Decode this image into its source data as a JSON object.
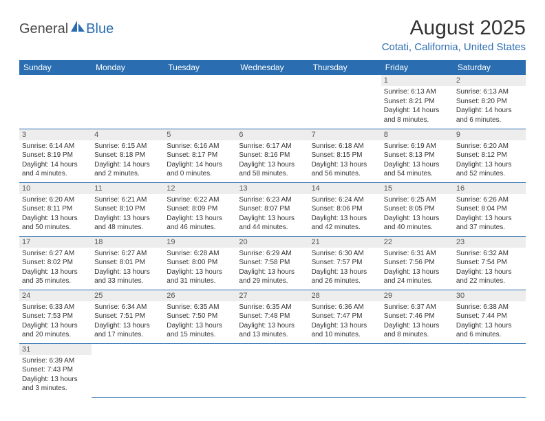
{
  "brand": {
    "part1": "General",
    "part2": "Blue",
    "logo_color": "#2a6db0"
  },
  "title": "August 2025",
  "location": "Cotati, California, United States",
  "colors": {
    "header_bg": "#2a6db0",
    "header_fg": "#ffffff",
    "daynum_bg": "#ededed",
    "text": "#333333",
    "rule": "#2a6db0"
  },
  "weekdays": [
    "Sunday",
    "Monday",
    "Tuesday",
    "Wednesday",
    "Thursday",
    "Friday",
    "Saturday"
  ],
  "weeks": [
    [
      null,
      null,
      null,
      null,
      null,
      {
        "n": "1",
        "sr": "6:13 AM",
        "ss": "8:21 PM",
        "dl": "14 hours and 8 minutes."
      },
      {
        "n": "2",
        "sr": "6:13 AM",
        "ss": "8:20 PM",
        "dl": "14 hours and 6 minutes."
      }
    ],
    [
      {
        "n": "3",
        "sr": "6:14 AM",
        "ss": "8:19 PM",
        "dl": "14 hours and 4 minutes."
      },
      {
        "n": "4",
        "sr": "6:15 AM",
        "ss": "8:18 PM",
        "dl": "14 hours and 2 minutes."
      },
      {
        "n": "5",
        "sr": "6:16 AM",
        "ss": "8:17 PM",
        "dl": "14 hours and 0 minutes."
      },
      {
        "n": "6",
        "sr": "6:17 AM",
        "ss": "8:16 PM",
        "dl": "13 hours and 58 minutes."
      },
      {
        "n": "7",
        "sr": "6:18 AM",
        "ss": "8:15 PM",
        "dl": "13 hours and 56 minutes."
      },
      {
        "n": "8",
        "sr": "6:19 AM",
        "ss": "8:13 PM",
        "dl": "13 hours and 54 minutes."
      },
      {
        "n": "9",
        "sr": "6:20 AM",
        "ss": "8:12 PM",
        "dl": "13 hours and 52 minutes."
      }
    ],
    [
      {
        "n": "10",
        "sr": "6:20 AM",
        "ss": "8:11 PM",
        "dl": "13 hours and 50 minutes."
      },
      {
        "n": "11",
        "sr": "6:21 AM",
        "ss": "8:10 PM",
        "dl": "13 hours and 48 minutes."
      },
      {
        "n": "12",
        "sr": "6:22 AM",
        "ss": "8:09 PM",
        "dl": "13 hours and 46 minutes."
      },
      {
        "n": "13",
        "sr": "6:23 AM",
        "ss": "8:07 PM",
        "dl": "13 hours and 44 minutes."
      },
      {
        "n": "14",
        "sr": "6:24 AM",
        "ss": "8:06 PM",
        "dl": "13 hours and 42 minutes."
      },
      {
        "n": "15",
        "sr": "6:25 AM",
        "ss": "8:05 PM",
        "dl": "13 hours and 40 minutes."
      },
      {
        "n": "16",
        "sr": "6:26 AM",
        "ss": "8:04 PM",
        "dl": "13 hours and 37 minutes."
      }
    ],
    [
      {
        "n": "17",
        "sr": "6:27 AM",
        "ss": "8:02 PM",
        "dl": "13 hours and 35 minutes."
      },
      {
        "n": "18",
        "sr": "6:27 AM",
        "ss": "8:01 PM",
        "dl": "13 hours and 33 minutes."
      },
      {
        "n": "19",
        "sr": "6:28 AM",
        "ss": "8:00 PM",
        "dl": "13 hours and 31 minutes."
      },
      {
        "n": "20",
        "sr": "6:29 AM",
        "ss": "7:58 PM",
        "dl": "13 hours and 29 minutes."
      },
      {
        "n": "21",
        "sr": "6:30 AM",
        "ss": "7:57 PM",
        "dl": "13 hours and 26 minutes."
      },
      {
        "n": "22",
        "sr": "6:31 AM",
        "ss": "7:56 PM",
        "dl": "13 hours and 24 minutes."
      },
      {
        "n": "23",
        "sr": "6:32 AM",
        "ss": "7:54 PM",
        "dl": "13 hours and 22 minutes."
      }
    ],
    [
      {
        "n": "24",
        "sr": "6:33 AM",
        "ss": "7:53 PM",
        "dl": "13 hours and 20 minutes."
      },
      {
        "n": "25",
        "sr": "6:34 AM",
        "ss": "7:51 PM",
        "dl": "13 hours and 17 minutes."
      },
      {
        "n": "26",
        "sr": "6:35 AM",
        "ss": "7:50 PM",
        "dl": "13 hours and 15 minutes."
      },
      {
        "n": "27",
        "sr": "6:35 AM",
        "ss": "7:48 PM",
        "dl": "13 hours and 13 minutes."
      },
      {
        "n": "28",
        "sr": "6:36 AM",
        "ss": "7:47 PM",
        "dl": "13 hours and 10 minutes."
      },
      {
        "n": "29",
        "sr": "6:37 AM",
        "ss": "7:46 PM",
        "dl": "13 hours and 8 minutes."
      },
      {
        "n": "30",
        "sr": "6:38 AM",
        "ss": "7:44 PM",
        "dl": "13 hours and 6 minutes."
      }
    ],
    [
      {
        "n": "31",
        "sr": "6:39 AM",
        "ss": "7:43 PM",
        "dl": "13 hours and 3 minutes."
      },
      null,
      null,
      null,
      null,
      null,
      null
    ]
  ],
  "labels": {
    "sunrise": "Sunrise:",
    "sunset": "Sunset:",
    "daylight": "Daylight:"
  }
}
